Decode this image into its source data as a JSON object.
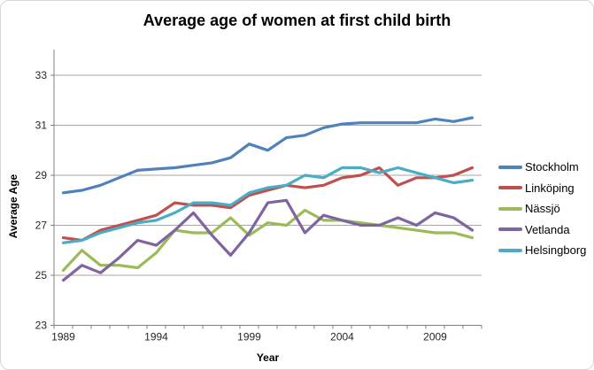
{
  "chart_data": {
    "type": "line",
    "title": "Average age of women at first child birth",
    "xlabel": "Year",
    "ylabel": "Average Age",
    "x": [
      1989,
      1990,
      1991,
      1992,
      1993,
      1994,
      1995,
      1996,
      1997,
      1998,
      1999,
      2000,
      2001,
      2002,
      2003,
      2004,
      2005,
      2006,
      2007,
      2008,
      2009,
      2010,
      2011
    ],
    "x_labeled_ticks": [
      1989,
      1994,
      1999,
      2004,
      2009
    ],
    "ylim": [
      23,
      33
    ],
    "yticks": [
      23,
      25,
      27,
      29,
      31,
      33
    ],
    "grid": true,
    "legend_position": "right",
    "series": [
      {
        "name": "Stockholm",
        "color": "#4F81BD",
        "values": [
          28.3,
          28.4,
          28.6,
          28.9,
          29.2,
          29.25,
          29.3,
          29.4,
          29.5,
          29.7,
          30.25,
          30.0,
          30.5,
          30.6,
          30.9,
          31.05,
          31.1,
          31.1,
          31.1,
          31.1,
          31.25,
          31.15,
          31.3
        ]
      },
      {
        "name": "Linköping",
        "color": "#C0504D",
        "values": [
          26.5,
          26.4,
          26.8,
          27.0,
          27.2,
          27.4,
          27.9,
          27.8,
          27.8,
          27.7,
          28.2,
          28.4,
          28.6,
          28.5,
          28.6,
          28.9,
          29.0,
          29.3,
          28.6,
          28.9,
          28.9,
          29.0,
          29.3
        ]
      },
      {
        "name": "Nässjö",
        "color": "#9BBB59",
        "values": [
          25.2,
          26.0,
          25.4,
          25.4,
          25.3,
          25.9,
          26.8,
          26.7,
          26.7,
          27.3,
          26.6,
          27.1,
          27.0,
          27.6,
          27.2,
          27.2,
          27.1,
          27.0,
          26.9,
          26.8,
          26.7,
          26.7,
          26.5
        ]
      },
      {
        "name": "Vetlanda",
        "color": "#8064A2",
        "values": [
          24.8,
          25.4,
          25.1,
          25.7,
          26.4,
          26.2,
          26.8,
          27.5,
          26.6,
          25.8,
          26.7,
          27.9,
          28.0,
          26.7,
          27.4,
          27.2,
          27.0,
          27.0,
          27.3,
          27.0,
          27.5,
          27.3,
          26.8
        ]
      },
      {
        "name": "Helsingborg",
        "color": "#4BACC6",
        "values": [
          26.3,
          26.4,
          26.7,
          26.9,
          27.1,
          27.2,
          27.5,
          27.9,
          27.9,
          27.8,
          28.3,
          28.5,
          28.6,
          29.0,
          28.9,
          29.3,
          29.3,
          29.1,
          29.3,
          29.1,
          28.9,
          28.7,
          28.8
        ]
      }
    ],
    "colors": {
      "gridline": "#A6A6A6",
      "axis": "#808080",
      "tick_text": "#262626"
    }
  }
}
